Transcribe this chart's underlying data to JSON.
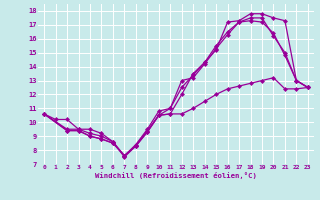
{
  "xlabel": "Windchill (Refroidissement éolien,°C)",
  "bg_color": "#c8eaea",
  "line_color": "#990099",
  "marker": "D",
  "markersize": 2.0,
  "linewidth": 0.9,
  "xlim": [
    -0.5,
    23.5
  ],
  "ylim": [
    7,
    18.5
  ],
  "xticks": [
    0,
    1,
    2,
    3,
    4,
    5,
    6,
    7,
    8,
    9,
    10,
    11,
    12,
    13,
    14,
    15,
    16,
    17,
    18,
    19,
    20,
    21,
    22,
    23
  ],
  "yticks": [
    7,
    8,
    9,
    10,
    11,
    12,
    13,
    14,
    15,
    16,
    17,
    18
  ],
  "grid_color": "#ffffff",
  "lines": [
    {
      "x": [
        0,
        1,
        2,
        3,
        4,
        5,
        6,
        7,
        8,
        9,
        10,
        11,
        12,
        13,
        14,
        15,
        16,
        17,
        18,
        19,
        20,
        21,
        22,
        23
      ],
      "y": [
        10.6,
        10.2,
        10.2,
        9.5,
        9.5,
        9.2,
        8.6,
        7.5,
        8.3,
        9.4,
        10.5,
        10.6,
        10.6,
        11.0,
        11.5,
        12.0,
        12.4,
        12.6,
        12.8,
        13.0,
        13.2,
        12.4,
        12.4,
        12.5
      ]
    },
    {
      "x": [
        0,
        2,
        3,
        4,
        5,
        6,
        7,
        8,
        9,
        10,
        11,
        12,
        13,
        14,
        15,
        16,
        17,
        18,
        19,
        20,
        21,
        22,
        23
      ],
      "y": [
        10.6,
        9.5,
        9.5,
        9.2,
        9.0,
        8.6,
        7.6,
        8.4,
        9.5,
        10.8,
        11.0,
        13.0,
        13.2,
        14.2,
        15.3,
        16.3,
        17.2,
        17.3,
        17.2,
        16.4,
        14.8,
        13.0,
        12.5
      ]
    },
    {
      "x": [
        0,
        2,
        3,
        4,
        5,
        6,
        7,
        8,
        9,
        10,
        11,
        12,
        13,
        14,
        15,
        16,
        17,
        18,
        19,
        20,
        21,
        22,
        23
      ],
      "y": [
        10.6,
        9.4,
        9.4,
        9.0,
        8.8,
        8.5,
        7.6,
        8.3,
        9.3,
        10.5,
        11.0,
        12.5,
        13.4,
        14.3,
        15.5,
        16.5,
        17.2,
        17.5,
        17.5,
        16.2,
        15.0,
        13.0,
        12.5
      ]
    },
    {
      "x": [
        0,
        2,
        3,
        4,
        5,
        6,
        7,
        8,
        9,
        10,
        11,
        12,
        13,
        14,
        15,
        16,
        17,
        18,
        19,
        20,
        21,
        22,
        23
      ],
      "y": [
        10.6,
        9.4,
        9.4,
        9.0,
        8.8,
        8.5,
        7.6,
        8.3,
        9.3,
        10.5,
        10.6,
        12.0,
        13.5,
        14.3,
        15.2,
        17.2,
        17.3,
        17.8,
        17.8,
        17.5,
        17.3,
        13.0,
        12.5
      ]
    }
  ]
}
